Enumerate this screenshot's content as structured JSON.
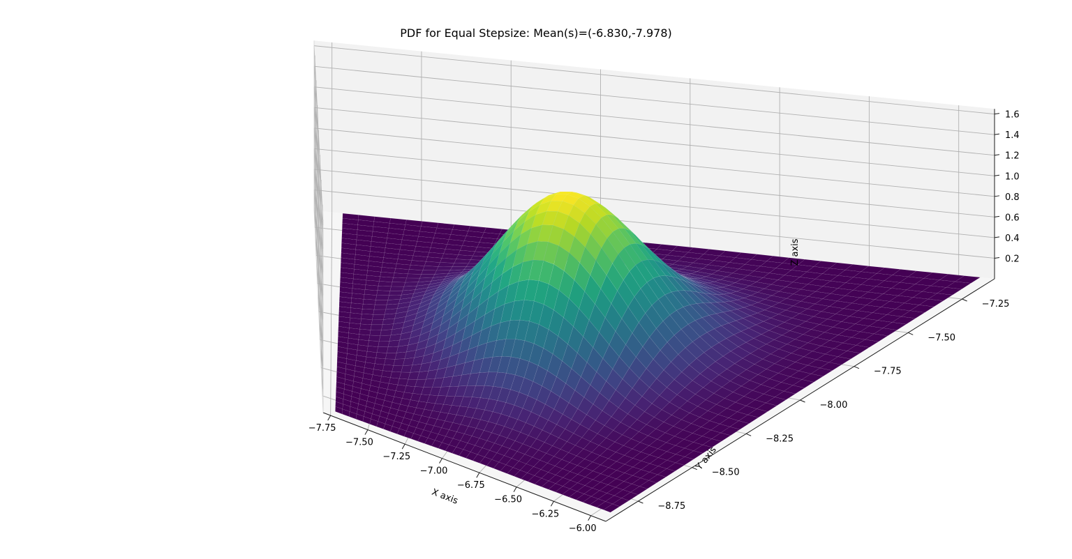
{
  "chart_data": {
    "type": "surface",
    "title": "PDF for Equal Stepsize: Mean(s)=(-6.830,-7.978)",
    "xlabel": "X axis",
    "ylabel": "Y axis",
    "zlabel": "Z axis",
    "xlim": [
      -7.8,
      -5.9
    ],
    "ylim": [
      -8.9,
      -7.1
    ],
    "zlim": [
      0,
      1.65
    ],
    "x_ticks": [
      "−7.75",
      "−7.50",
      "−7.25",
      "−7.00",
      "−6.75",
      "−6.50",
      "−6.25",
      "−6.00"
    ],
    "x_tick_values": [
      -7.75,
      -7.5,
      -7.25,
      -7.0,
      -6.75,
      -6.5,
      -6.25,
      -6.0
    ],
    "y_ticks": [
      "−8.75",
      "−8.50",
      "−8.25",
      "−8.00",
      "−7.75",
      "−7.50",
      "−7.25"
    ],
    "y_tick_values": [
      -8.75,
      -8.5,
      -8.25,
      -8.0,
      -7.75,
      -7.5,
      -7.25
    ],
    "z_ticks": [
      "0.2",
      "0.4",
      "0.6",
      "0.8",
      "1.0",
      "1.2",
      "1.4",
      "1.6"
    ],
    "z_tick_values": [
      0.2,
      0.4,
      0.6,
      0.8,
      1.0,
      1.2,
      1.4,
      1.6
    ],
    "surface": {
      "function": "bivariate gaussian pdf",
      "mean": [
        -6.83,
        -7.978
      ],
      "std": [
        0.28,
        0.28
      ],
      "peak_z": 1.45,
      "x_range": [
        -7.72,
        -5.94
      ],
      "y_range": [
        -8.85,
        -7.1
      ],
      "grid": 40,
      "colormap": "viridis"
    },
    "grid": true,
    "colors": {
      "pane_left": "#ececec",
      "pane_back": "#f2f2f2",
      "pane_floor": "#f6f6f6",
      "gridline": "#b0b0b0"
    }
  }
}
